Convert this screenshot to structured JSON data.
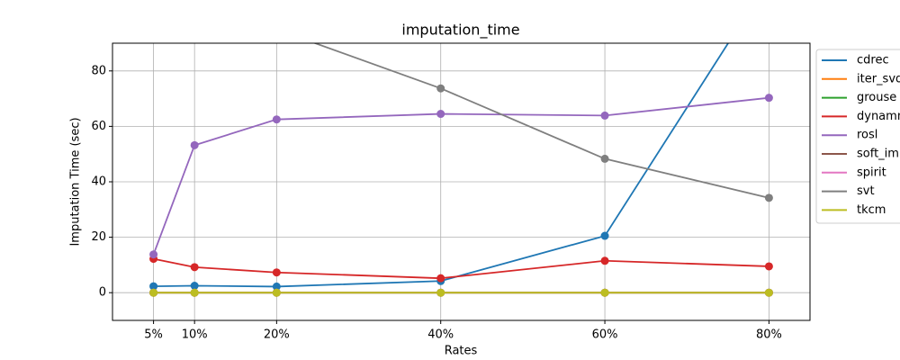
{
  "chart_data": {
    "type": "line",
    "title": "imputation_time",
    "x_label": "Rates",
    "y_label": "Imputation Time (sec)",
    "x": [
      5,
      10,
      20,
      40,
      60,
      80
    ],
    "xlim": [
      0,
      85
    ],
    "ylim": [
      -10,
      90
    ],
    "xticks": [
      {
        "value": 5,
        "label": "5%"
      },
      {
        "value": 10,
        "label": "10%"
      },
      {
        "value": 20,
        "label": "20%"
      },
      {
        "value": 40,
        "label": "40%"
      },
      {
        "value": 60,
        "label": "60%"
      },
      {
        "value": 80,
        "label": "80%"
      }
    ],
    "yticks": [
      0,
      20,
      40,
      60,
      80
    ],
    "grid": true,
    "legend": "outside-right",
    "series": [
      {
        "name": "cdrec",
        "color": "#1f77b4",
        "values": [
          2.3,
          2.5,
          2.2,
          4.2,
          20.5,
          113
        ]
      },
      {
        "name": "iter_svd",
        "color": "#ff7f0e",
        "values": [
          0,
          0,
          0,
          0,
          0,
          0
        ]
      },
      {
        "name": "grouse",
        "color": "#2ca02c",
        "values": [
          0,
          0,
          0,
          0,
          0,
          0
        ]
      },
      {
        "name": "dynammo",
        "color": "#d62728",
        "values": [
          12.2,
          9.2,
          7.3,
          5.2,
          11.5,
          9.5
        ]
      },
      {
        "name": "rosl",
        "color": "#9467bd",
        "values": [
          13.8,
          53.2,
          62.5,
          64.5,
          63.9,
          70.3
        ]
      },
      {
        "name": "soft_impute",
        "color": "#8c564b",
        "values": [
          0,
          0,
          0,
          0,
          0,
          0
        ]
      },
      {
        "name": "spirit",
        "color": "#e377c2",
        "values": [
          0,
          0,
          0,
          0,
          0,
          0
        ]
      },
      {
        "name": "svt",
        "color": "#7f7f7f",
        "values": [
          null,
          null,
          95,
          73.7,
          48.3,
          34.2
        ]
      },
      {
        "name": "tkcm",
        "color": "#bcbd22",
        "values": [
          0,
          0,
          0,
          0,
          0,
          0
        ]
      }
    ]
  }
}
